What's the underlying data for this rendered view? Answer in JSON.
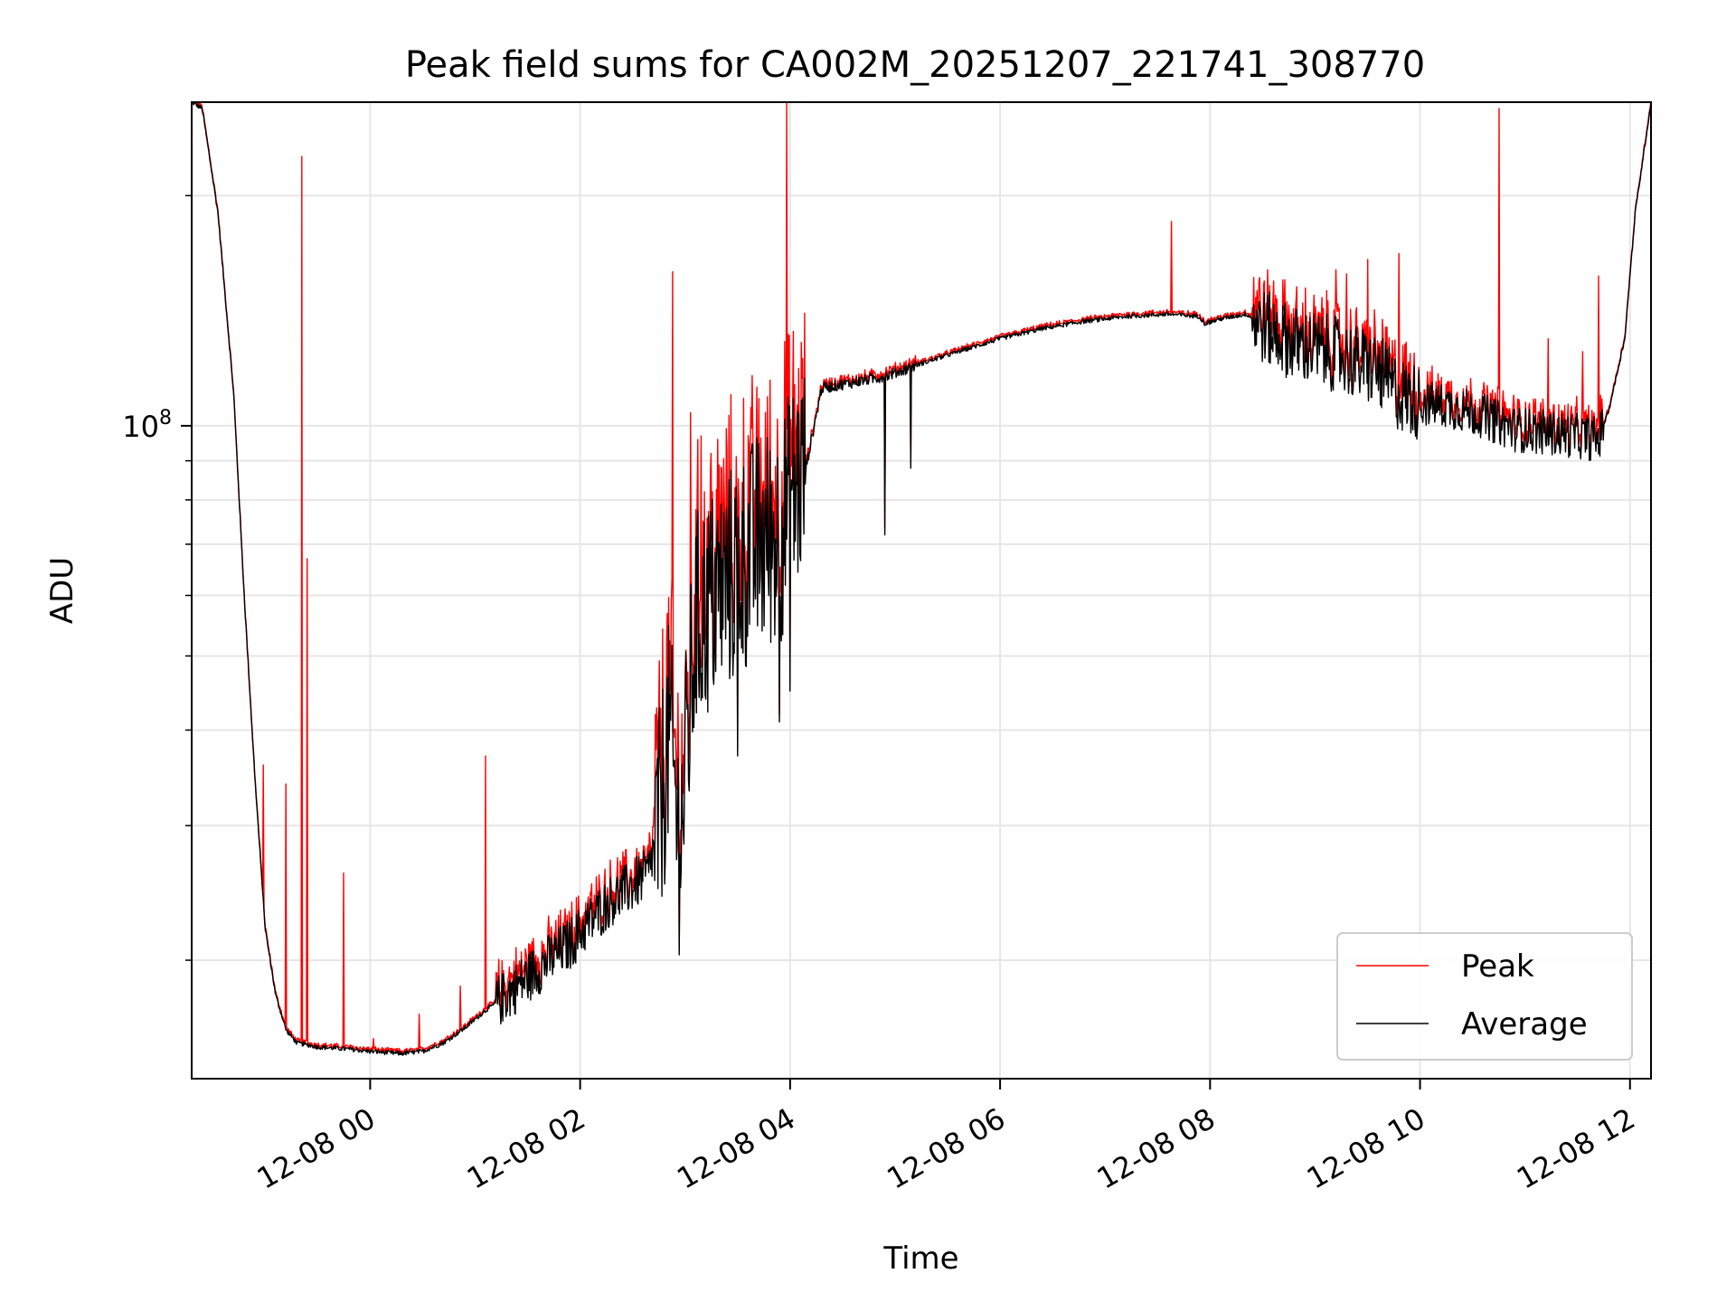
{
  "chart_data": {
    "type": "line",
    "title": "Peak field sums for CA002M_20251207_221741_308770",
    "xlabel": "Time",
    "ylabel": "ADU",
    "yscale": "log",
    "ytick_major": {
      "value": 100000000,
      "base": "10",
      "exp": "8"
    },
    "ylim": [
      14000000,
      265000000
    ],
    "xlim_hours": [
      -1.7,
      12.2
    ],
    "xticks": [
      {
        "hours": 0,
        "label": "12-08 00"
      },
      {
        "hours": 2,
        "label": "12-08 02"
      },
      {
        "hours": 4,
        "label": "12-08 04"
      },
      {
        "hours": 6,
        "label": "12-08 06"
      },
      {
        "hours": 8,
        "label": "12-08 08"
      },
      {
        "hours": 10,
        "label": "12-08 10"
      },
      {
        "hours": 12,
        "label": "12-08 12"
      }
    ],
    "grid": true,
    "legend_position": "lower-right",
    "series": [
      {
        "name": "Peak",
        "color": "#ff0000"
      },
      {
        "name": "Average",
        "color": "#000000"
      }
    ],
    "average_anchor_points": [
      [
        -1.7,
        265000000
      ],
      [
        -1.6,
        260000000
      ],
      [
        -1.45,
        190000000
      ],
      [
        -1.3,
        110000000
      ],
      [
        -1.2,
        60000000
      ],
      [
        -1.1,
        35000000
      ],
      [
        -1.0,
        22000000
      ],
      [
        -0.9,
        18000000
      ],
      [
        -0.8,
        16200000
      ],
      [
        -0.7,
        15600000
      ],
      [
        -0.5,
        15400000
      ],
      [
        -0.2,
        15300000
      ],
      [
        0.0,
        15200000
      ],
      [
        0.3,
        15100000
      ],
      [
        0.5,
        15200000
      ],
      [
        0.7,
        15600000
      ],
      [
        0.9,
        16300000
      ],
      [
        1.1,
        17200000
      ],
      [
        1.3,
        18000000
      ],
      [
        1.5,
        19000000
      ],
      [
        1.7,
        20000000
      ],
      [
        1.9,
        21000000
      ],
      [
        2.1,
        22500000
      ],
      [
        2.3,
        24000000
      ],
      [
        2.5,
        25000000
      ],
      [
        2.65,
        26000000
      ],
      [
        2.75,
        30000000
      ],
      [
        2.85,
        40000000
      ],
      [
        2.95,
        28000000
      ],
      [
        3.1,
        55000000
      ],
      [
        3.3,
        60000000
      ],
      [
        3.5,
        65000000
      ],
      [
        3.7,
        70000000
      ],
      [
        3.9,
        72000000
      ],
      [
        4.0,
        80000000
      ],
      [
        4.15,
        88000000
      ],
      [
        4.3,
        112000000
      ],
      [
        4.6,
        114000000
      ],
      [
        4.9,
        116000000
      ],
      [
        5.2,
        120000000
      ],
      [
        5.6,
        125000000
      ],
      [
        6.0,
        130000000
      ],
      [
        6.4,
        134000000
      ],
      [
        6.8,
        137000000
      ],
      [
        7.2,
        139000000
      ],
      [
        7.6,
        140000000
      ],
      [
        7.9,
        139000000
      ],
      [
        7.95,
        136000000
      ],
      [
        8.1,
        138000000
      ],
      [
        8.35,
        140000000
      ],
      [
        8.5,
        135000000
      ],
      [
        8.8,
        128000000
      ],
      [
        9.2,
        124000000
      ],
      [
        9.6,
        118000000
      ],
      [
        9.8,
        110000000
      ],
      [
        10.0,
        107000000
      ],
      [
        10.3,
        106000000
      ],
      [
        10.6,
        103000000
      ],
      [
        10.9,
        99000000
      ],
      [
        11.2,
        98000000
      ],
      [
        11.5,
        97000000
      ],
      [
        11.7,
        96000000
      ],
      [
        11.8,
        105000000
      ],
      [
        11.95,
        130000000
      ],
      [
        12.05,
        190000000
      ],
      [
        12.2,
        265000000
      ]
    ],
    "average_noise": [
      {
        "x0": 1.2,
        "x1": 2.7,
        "amp": 0.07
      },
      {
        "x0": 2.7,
        "x1": 4.15,
        "amp": 0.3
      },
      {
        "x0": 4.15,
        "x1": 5.2,
        "amp": 0.015
      },
      {
        "x0": 8.4,
        "x1": 10.0,
        "amp": 0.1
      },
      {
        "x0": 10.0,
        "x1": 11.75,
        "amp": 0.06
      }
    ],
    "average_dips": [
      {
        "hours": 4.9,
        "value": 72000000
      },
      {
        "hours": 5.15,
        "value": 88000000
      },
      {
        "hours": 2.95,
        "value": 27500000
      },
      {
        "hours": 3.5,
        "value": 37000000
      },
      {
        "hours": 3.9,
        "value": 41000000
      },
      {
        "hours": 4.0,
        "value": 45000000
      }
    ],
    "peak_spikes": [
      {
        "hours": -1.02,
        "value": 36000000
      },
      {
        "hours": -0.8,
        "value": 34000000
      },
      {
        "hours": -0.65,
        "value": 225000000
      },
      {
        "hours": -0.6,
        "value": 67000000
      },
      {
        "hours": -0.25,
        "value": 26000000
      },
      {
        "hours": 0.03,
        "value": 15800000
      },
      {
        "hours": 0.47,
        "value": 17000000
      },
      {
        "hours": 0.86,
        "value": 18500000
      },
      {
        "hours": 1.1,
        "value": 37000000
      },
      {
        "hours": 2.88,
        "value": 159000000
      },
      {
        "hours": 3.05,
        "value": 104000000
      },
      {
        "hours": 3.15,
        "value": 97000000
      },
      {
        "hours": 3.25,
        "value": 92000000
      },
      {
        "hours": 3.35,
        "value": 88000000
      },
      {
        "hours": 3.97,
        "value": 265000000
      },
      {
        "hours": 7.63,
        "value": 185000000
      },
      {
        "hours": 8.6,
        "value": 145000000
      },
      {
        "hours": 9.2,
        "value": 160000000
      },
      {
        "hours": 9.3,
        "value": 158000000
      },
      {
        "hours": 9.5,
        "value": 165000000
      },
      {
        "hours": 9.8,
        "value": 168000000
      },
      {
        "hours": 10.75,
        "value": 260000000
      },
      {
        "hours": 11.22,
        "value": 130000000
      },
      {
        "hours": 11.55,
        "value": 125000000
      },
      {
        "hours": 11.7,
        "value": 157000000
      }
    ]
  }
}
